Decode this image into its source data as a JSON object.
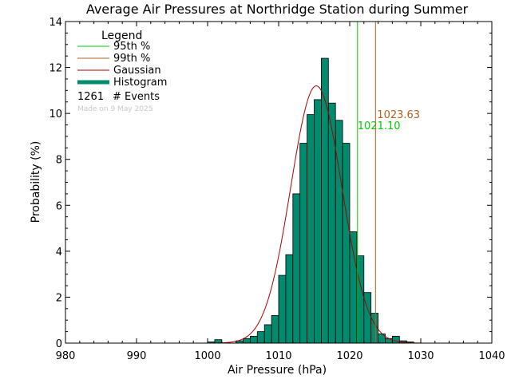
{
  "chart_data": {
    "type": "bar",
    "title": "Average Air Pressures at Northridge Station during Summer",
    "xlabel": "Air Pressure (hPa)",
    "ylabel": "Probability (%)",
    "xlim": [
      980,
      1040
    ],
    "ylim": [
      0,
      14
    ],
    "xticks": [
      980,
      990,
      1000,
      1010,
      1020,
      1030,
      1040
    ],
    "yticks": [
      0,
      2,
      4,
      6,
      8,
      10,
      12,
      14
    ],
    "bin_width": 1,
    "bins": [
      {
        "x": 1000,
        "y": 0.05
      },
      {
        "x": 1001,
        "y": 0.15
      },
      {
        "x": 1004,
        "y": 0.1
      },
      {
        "x": 1005,
        "y": 0.2
      },
      {
        "x": 1006,
        "y": 0.3
      },
      {
        "x": 1007,
        "y": 0.5
      },
      {
        "x": 1008,
        "y": 0.8
      },
      {
        "x": 1009,
        "y": 1.2
      },
      {
        "x": 1010,
        "y": 2.95
      },
      {
        "x": 1011,
        "y": 3.85
      },
      {
        "x": 1012,
        "y": 6.5
      },
      {
        "x": 1013,
        "y": 8.7
      },
      {
        "x": 1014,
        "y": 9.95
      },
      {
        "x": 1015,
        "y": 10.6
      },
      {
        "x": 1016,
        "y": 12.4
      },
      {
        "x": 1017,
        "y": 10.45
      },
      {
        "x": 1018,
        "y": 9.7
      },
      {
        "x": 1019,
        "y": 8.7
      },
      {
        "x": 1020,
        "y": 4.85
      },
      {
        "x": 1021,
        "y": 3.8
      },
      {
        "x": 1022,
        "y": 2.2
      },
      {
        "x": 1023,
        "y": 1.3
      },
      {
        "x": 1024,
        "y": 0.4
      },
      {
        "x": 1025,
        "y": 0.2
      },
      {
        "x": 1026,
        "y": 0.3
      },
      {
        "x": 1027,
        "y": 0.1
      },
      {
        "x": 1028,
        "y": 0.05
      }
    ],
    "gaussian": {
      "mean": 1015.3,
      "sigma": 3.6,
      "peak": 11.2
    },
    "percentiles": [
      {
        "label": "95th %",
        "value": 1021.1,
        "value_text": "1021.10",
        "color": "#00cc00"
      },
      {
        "label": "99th %",
        "value": 1023.63,
        "value_text": "1023.63",
        "color": "#b06020"
      }
    ],
    "legend": {
      "title": "Legend",
      "items": [
        {
          "label": "95th %",
          "color": "#00cc00",
          "kind": "line"
        },
        {
          "label": "99th %",
          "color": "#b06020",
          "kind": "line"
        },
        {
          "label": "Gaussian",
          "color": "#aa0000",
          "kind": "line"
        },
        {
          "label": "Histogram",
          "color": "#008a6e",
          "kind": "thick"
        }
      ],
      "events_count": "1261",
      "events_label": "# Events",
      "made_on": "Made on 9 May 2025",
      "placement": "top-left"
    },
    "colors": {
      "histogram_fill": "#008a6e",
      "gaussian": "#aa0000",
      "p95": "#00cc00",
      "p99": "#b06020"
    },
    "grid": false
  }
}
